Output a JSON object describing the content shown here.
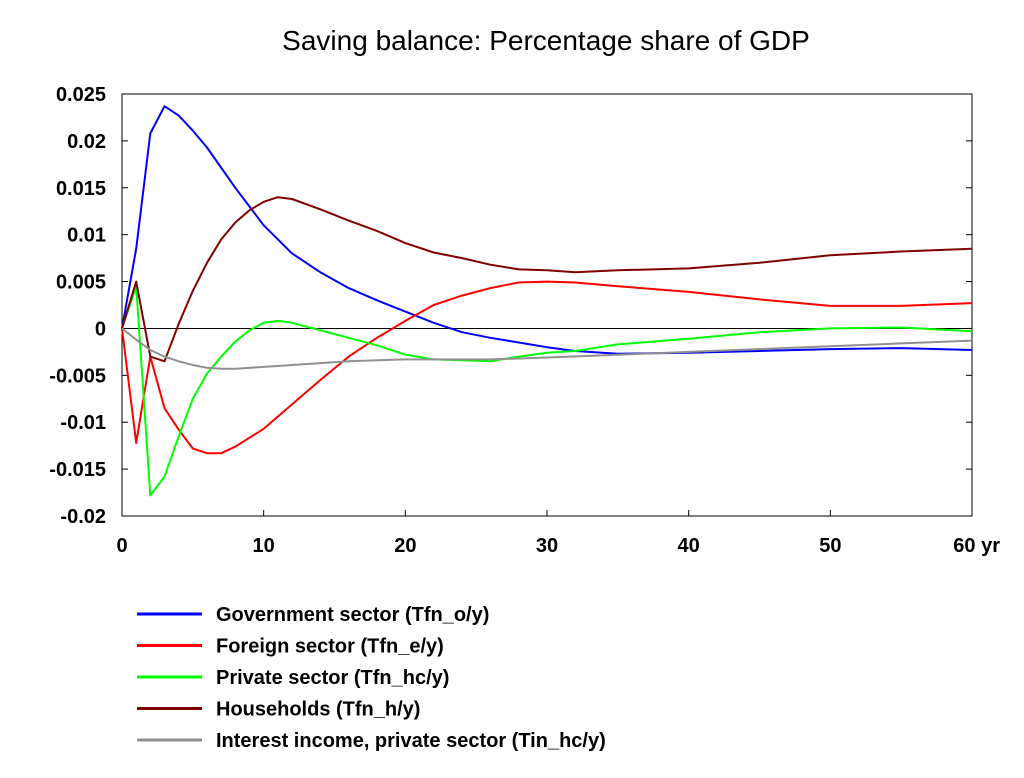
{
  "chart_data": {
    "type": "line",
    "title": "Saving balance: Percentage share of GDP",
    "x_tick_labels": [
      "0",
      "10",
      "20",
      "30",
      "40",
      "50",
      "60 yr"
    ],
    "y_tick_labels": [
      "0.025",
      "0.02",
      "0.015",
      "0.01",
      "0.005",
      "0",
      "-0.005",
      "-0.01",
      "-0.015",
      "-0.02"
    ],
    "xlim": [
      0,
      60
    ],
    "ylim": [
      -0.02,
      0.025
    ],
    "x_ticks": [
      0,
      10,
      20,
      30,
      40,
      50,
      60
    ],
    "y_ticks": [
      0.025,
      0.02,
      0.015,
      0.01,
      0.005,
      0,
      -0.005,
      -0.01,
      -0.015,
      -0.02
    ],
    "zero_line": true,
    "grid": false,
    "legend_position": "bottom-left",
    "series": [
      {
        "name": "Government sector (Tfn_o/y)",
        "color": "#0000ff",
        "x": [
          0,
          1,
          2,
          3,
          4,
          5,
          6,
          8,
          10,
          12,
          14,
          16,
          18,
          20,
          22,
          24,
          26,
          28,
          30,
          32,
          35,
          40,
          45,
          50,
          55,
          60
        ],
        "y": [
          0.0,
          0.0085,
          0.0208,
          0.0237,
          0.0227,
          0.0211,
          0.0193,
          0.015,
          0.011,
          0.008,
          0.006,
          0.0043,
          0.003,
          0.0018,
          0.0006,
          -0.0004,
          -0.001,
          -0.0015,
          -0.002,
          -0.0024,
          -0.0027,
          -0.0026,
          -0.0024,
          -0.0022,
          -0.0021,
          -0.0023
        ]
      },
      {
        "name": "Foreign sector (Tfn_e/y)",
        "color": "#ff0000",
        "x": [
          0,
          1,
          2,
          3,
          4,
          5,
          6,
          7,
          8,
          10,
          12,
          14,
          16,
          18,
          20,
          22,
          24,
          26,
          28,
          30,
          32,
          35,
          40,
          45,
          50,
          55,
          60
        ],
        "y": [
          0.0,
          -0.0122,
          -0.003,
          -0.0085,
          -0.0108,
          -0.0128,
          -0.0133,
          -0.0133,
          -0.0126,
          -0.0107,
          -0.0081,
          -0.0055,
          -0.003,
          -0.001,
          0.0008,
          0.0025,
          0.0035,
          0.0043,
          0.0049,
          0.005,
          0.0049,
          0.0045,
          0.0039,
          0.0031,
          0.0024,
          0.0024,
          0.0027
        ]
      },
      {
        "name": "Private sector (Tfn_hc/y)",
        "color": "#00ff00",
        "x": [
          0,
          1,
          2,
          3,
          4,
          5,
          6,
          7,
          8,
          9,
          10,
          11,
          12,
          14,
          16,
          18,
          20,
          22,
          24,
          26,
          28,
          30,
          32,
          35,
          40,
          45,
          50,
          55,
          60
        ],
        "y": [
          0.0,
          0.0045,
          -0.0178,
          -0.0158,
          -0.0115,
          -0.0075,
          -0.0048,
          -0.003,
          -0.0014,
          -0.0002,
          0.0006,
          0.0008,
          0.0006,
          -0.0002,
          -0.001,
          -0.0018,
          -0.0028,
          -0.0033,
          -0.0034,
          -0.0035,
          -0.003,
          -0.0026,
          -0.0024,
          -0.0017,
          -0.0011,
          -0.0004,
          0.0,
          0.0001,
          -0.0003
        ]
      },
      {
        "name": "Households (Tfn_h/y)",
        "color": "#800000",
        "x": [
          0,
          1,
          2,
          3,
          4,
          5,
          6,
          7,
          8,
          9,
          10,
          11,
          12,
          14,
          16,
          18,
          20,
          22,
          24,
          26,
          28,
          30,
          32,
          35,
          40,
          45,
          50,
          55,
          60
        ],
        "y": [
          0.0,
          0.005,
          -0.003,
          -0.0035,
          0.0005,
          0.004,
          0.007,
          0.0095,
          0.0113,
          0.0126,
          0.0135,
          0.014,
          0.0138,
          0.0127,
          0.0115,
          0.0104,
          0.0091,
          0.0081,
          0.0075,
          0.0068,
          0.0063,
          0.0062,
          0.006,
          0.0062,
          0.0064,
          0.007,
          0.0078,
          0.0082,
          0.0085
        ]
      },
      {
        "name": "Interest income, private sector (Tin_hc/y)",
        "color": "#909090",
        "x": [
          0,
          1,
          2,
          3,
          4,
          5,
          6,
          7,
          8,
          10,
          12,
          14,
          16,
          18,
          20,
          22,
          24,
          26,
          28,
          30,
          35,
          40,
          45,
          50,
          55,
          60
        ],
        "y": [
          0.0,
          -0.0012,
          -0.0023,
          -0.003,
          -0.0035,
          -0.0039,
          -0.0042,
          -0.0043,
          -0.0043,
          -0.0041,
          -0.0039,
          -0.0037,
          -0.0035,
          -0.0034,
          -0.0033,
          -0.0033,
          -0.0033,
          -0.0033,
          -0.0032,
          -0.0031,
          -0.0028,
          -0.0025,
          -0.0022,
          -0.0019,
          -0.0016,
          -0.0013
        ]
      }
    ]
  }
}
